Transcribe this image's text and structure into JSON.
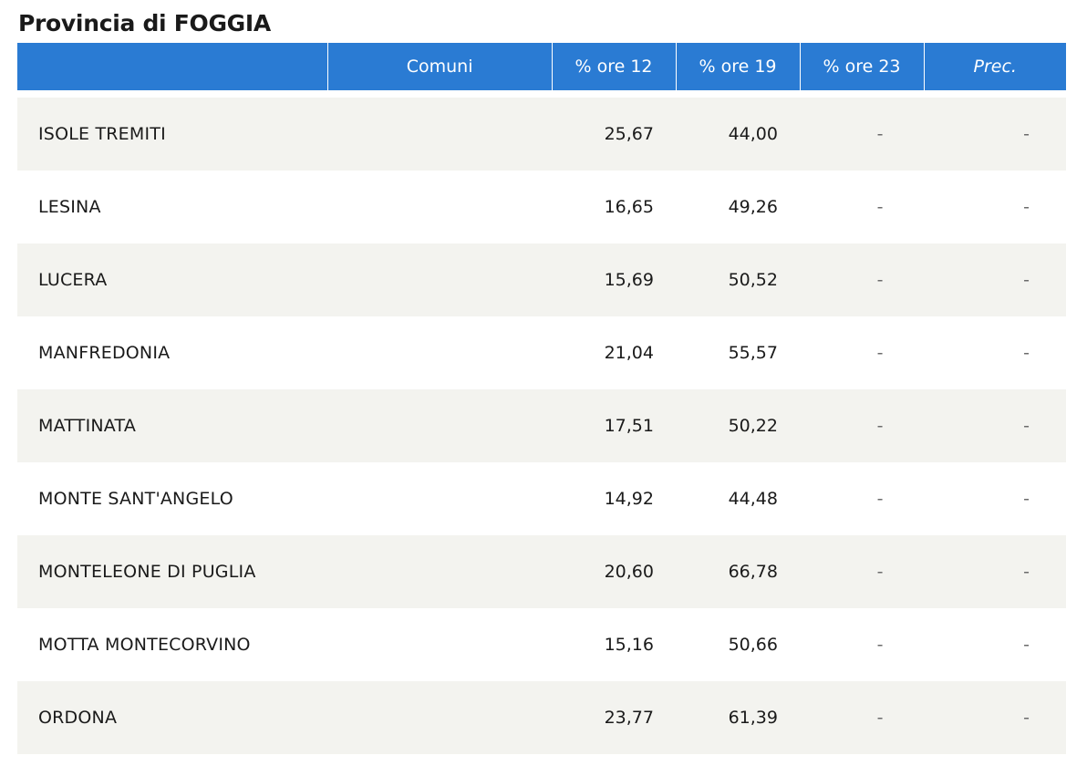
{
  "page": {
    "title": "Provincia di FOGGIA"
  },
  "colors": {
    "header_bg": "#2a7bd3",
    "header_text": "#ffffff",
    "row_alt_bg": "#f3f3ef",
    "row_bg": "#ffffff"
  },
  "table": {
    "headers": {
      "name": "",
      "comuni": "Comuni",
      "ore12": "% ore 12",
      "ore19": "% ore 19",
      "ore23": "% ore 23",
      "prec": "Prec."
    },
    "rows": [
      {
        "comune": "ISOLE TREMITI",
        "ore12": "25,67",
        "ore19": "44,00",
        "ore23": "-",
        "prec": "-"
      },
      {
        "comune": "LESINA",
        "ore12": "16,65",
        "ore19": "49,26",
        "ore23": "-",
        "prec": "-"
      },
      {
        "comune": "LUCERA",
        "ore12": "15,69",
        "ore19": "50,52",
        "ore23": "-",
        "prec": "-"
      },
      {
        "comune": "MANFREDONIA",
        "ore12": "21,04",
        "ore19": "55,57",
        "ore23": "-",
        "prec": "-"
      },
      {
        "comune": "MATTINATA",
        "ore12": "17,51",
        "ore19": "50,22",
        "ore23": "-",
        "prec": "-"
      },
      {
        "comune": "MONTE SANT'ANGELO",
        "ore12": "14,92",
        "ore19": "44,48",
        "ore23": "-",
        "prec": "-"
      },
      {
        "comune": "MONTELEONE DI PUGLIA",
        "ore12": "20,60",
        "ore19": "66,78",
        "ore23": "-",
        "prec": "-"
      },
      {
        "comune": "MOTTA MONTECORVINO",
        "ore12": "15,16",
        "ore19": "50,66",
        "ore23": "-",
        "prec": "-"
      },
      {
        "comune": "ORDONA",
        "ore12": "23,77",
        "ore19": "61,39",
        "ore23": "-",
        "prec": "-"
      }
    ]
  }
}
